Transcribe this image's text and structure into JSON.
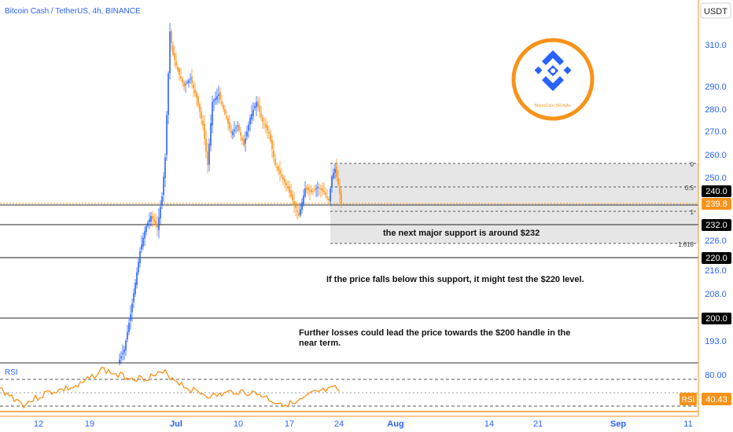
{
  "header": {
    "symbol_title": "Bitcoin Cash / TetherUS, 4h, BINANCE",
    "currency_button": "USDT"
  },
  "logo": {
    "caption": "MonoCoin SIGNAL"
  },
  "price_axis": {
    "ticks": [
      "310.0",
      "290.0",
      "280.0",
      "270.0",
      "260.0",
      "250.0",
      "226.0",
      "216.0",
      "208.0",
      "193.0"
    ]
  },
  "time_axis": {
    "ticks": [
      "12",
      "19",
      "Jul",
      "10",
      "17",
      "24",
      "Aug",
      "14",
      "21",
      "Sep",
      "11"
    ]
  },
  "price_labels": {
    "level_240": "240.0",
    "current": "239.8",
    "level_232": "232.0",
    "level_220": "220.0",
    "level_200": "200.0"
  },
  "fib_labels": {
    "zero": "0",
    "half": "0.5",
    "one": "1",
    "ext": "1.618"
  },
  "annotations": {
    "support_note": "the next major support is around $232",
    "break_note": "If the price falls below this support, it might test the $220 level.",
    "loss_note_line1": "Further losses could lead the price towards the $200 handle in the",
    "loss_note_line2": "near term."
  },
  "rsi_panel": {
    "title": "RSI",
    "level_80": "80.00",
    "badge": "RSI",
    "value": "40.43"
  },
  "colors": {
    "up": "#2962ff",
    "down": "#f7931a",
    "accent_orange": "#f7931a",
    "axis_blue": "#2962ff",
    "black_label": "#000000"
  },
  "chart_data": {
    "type": "candlestick",
    "title": "Bitcoin Cash / TetherUS, 4h, BINANCE",
    "currency": "USDT",
    "price_ticks": [
      310,
      290,
      280,
      270,
      260,
      250,
      226,
      216,
      208,
      193
    ],
    "horizontal_levels": [
      240,
      239.8,
      232,
      220,
      200
    ],
    "current_price": 239.8,
    "rsi_current": 40.43,
    "rsi_level": 80
  }
}
